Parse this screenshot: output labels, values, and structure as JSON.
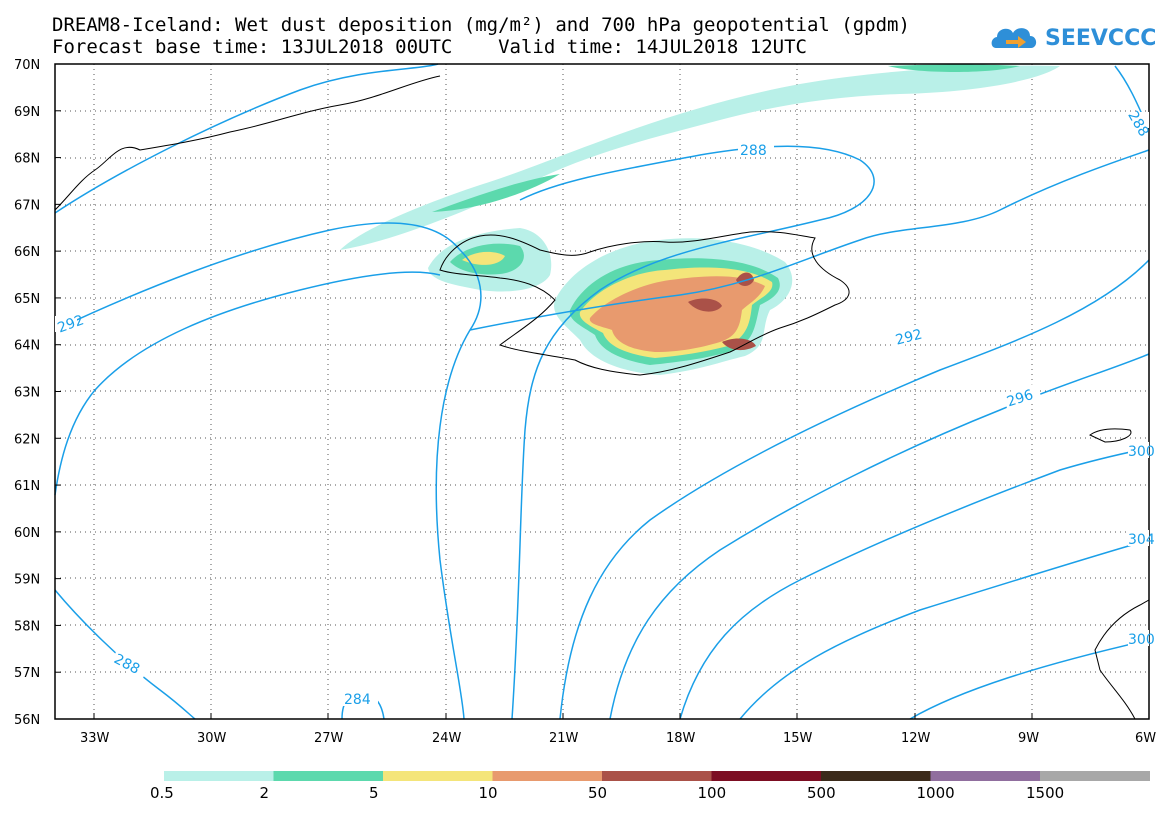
{
  "title_line1": "DREAM8-Iceland: Wet dust deposition (mg/m²) and 700 hPa geopotential (gpdm)",
  "title_line2": "Forecast base time: 13JUL2018 00UTC    Valid time: 14JUL2018 12UTC",
  "logo_text": "SEEVCCC",
  "lat_labels": [
    "70N",
    "69N",
    "68N",
    "67N",
    "66N",
    "65N",
    "64N",
    "63N",
    "62N",
    "61N",
    "60N",
    "59N",
    "58N",
    "57N",
    "56N"
  ],
  "lon_labels": [
    "33W",
    "30W",
    "27W",
    "24W",
    "21W",
    "18W",
    "15W",
    "12W",
    "9W",
    "6W"
  ],
  "contour_labels": [
    "288",
    "292",
    "296",
    "300",
    "304",
    "288",
    "284",
    "292",
    "300",
    "288"
  ],
  "legend": {
    "labels": [
      "0.5",
      "2",
      "5",
      "10",
      "50",
      "100",
      "500",
      "1000",
      "1500"
    ],
    "colors": [
      "#b9f0e8",
      "#5cd9ad",
      "#f4e57a",
      "#e89a6e",
      "#aa5148",
      "#7c0d22",
      "#3b2a1a",
      "#906e9e",
      "#a8a8a8"
    ]
  },
  "colors": {
    "contour": "#1a9fe8",
    "coast": "#000000"
  }
}
